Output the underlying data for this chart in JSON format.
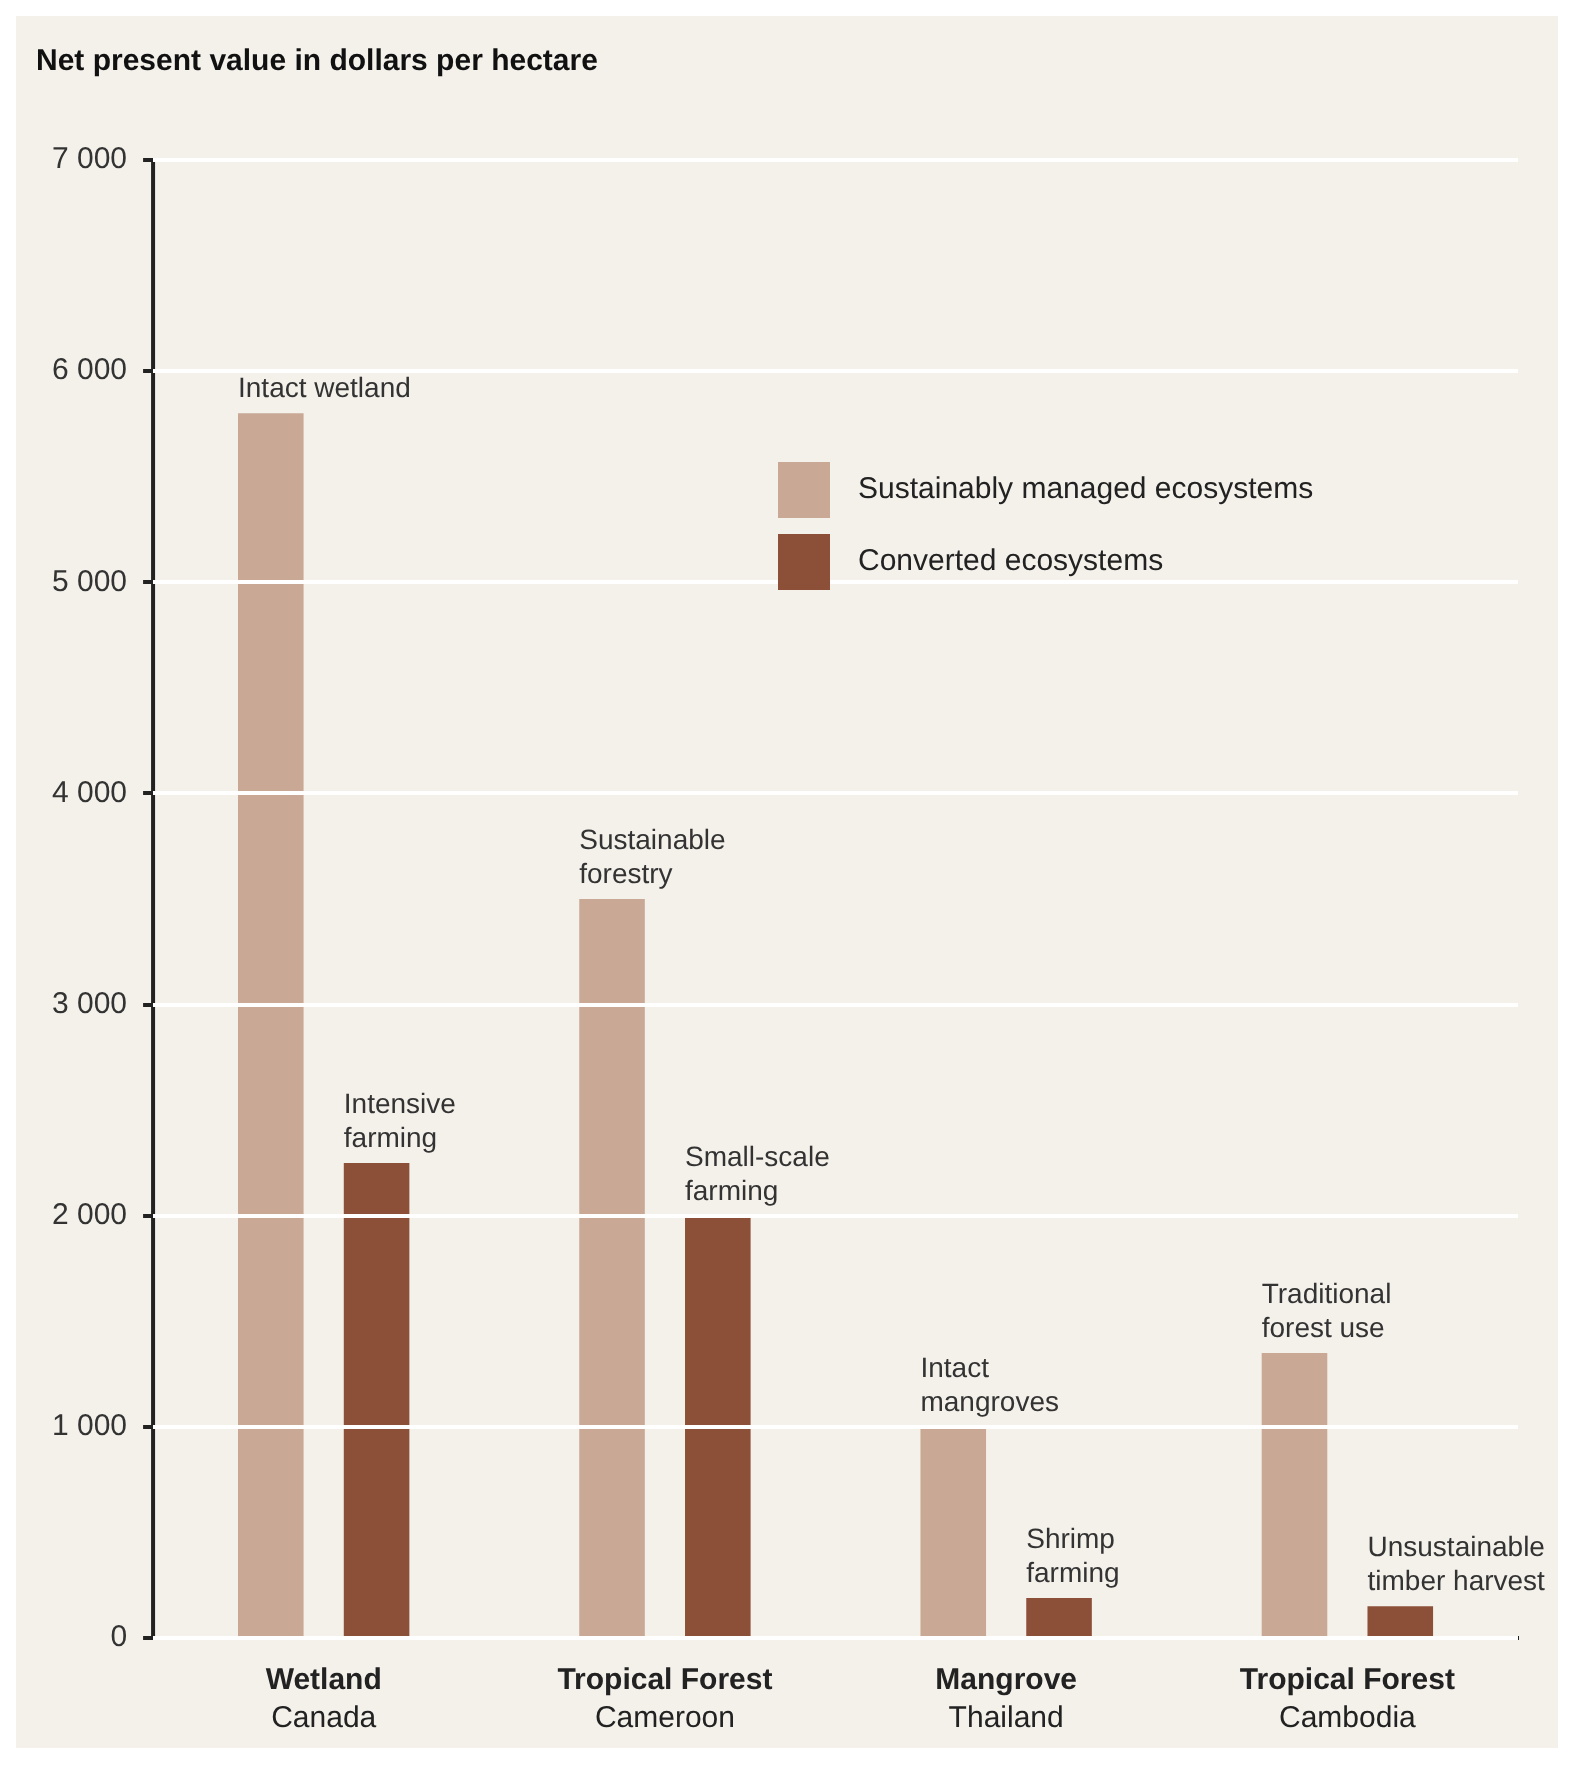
{
  "chart_data": {
    "type": "bar",
    "ylabel": "Net present value in dollars per hectare",
    "categories": [
      "Wetland\nCanada",
      "Tropical Forest\nCameroon",
      "Mangrove\nThailand",
      "Tropical Forest\nCambodia"
    ],
    "series": [
      {
        "name": "Sustainably managed ecosystems",
        "color": "#c9a995",
        "values": [
          5800,
          3500,
          1000,
          1350
        ]
      },
      {
        "name": "Converted ecosystems",
        "color": "#8c5038",
        "values": [
          2250,
          2000,
          190,
          150
        ]
      }
    ],
    "ylim": [
      0,
      7000
    ],
    "yticks": [
      {
        "value": 0,
        "label": "0"
      },
      {
        "value": 1000,
        "label": "1 000"
      },
      {
        "value": 2000,
        "label": "2 000"
      },
      {
        "value": 3000,
        "label": "3 000"
      },
      {
        "value": 4000,
        "label": "4 000"
      },
      {
        "value": 5000,
        "label": "5 000"
      },
      {
        "value": 6000,
        "label": "6 000"
      },
      {
        "value": 7000,
        "label": "7 000"
      }
    ],
    "grid": "y",
    "legend": "top right",
    "annotations": [
      "Intact wetland",
      "Intensive farming",
      "Sustainable forestry",
      "Small-scale farming",
      "Intact mangroves",
      "Shrimp farming",
      "Traditional forest use",
      "Unsustainable timber harvest"
    ]
  }
}
